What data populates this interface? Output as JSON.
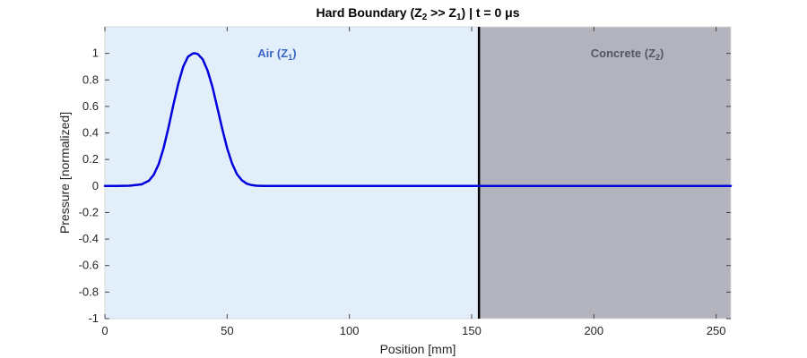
{
  "chart_data": {
    "type": "line",
    "title_parts": {
      "prefix": "Hard  Boundary  (Z",
      "sub1": "2",
      "mid": " >> Z",
      "sub2": "1",
      "suffix": ")  |  t  =  0  μs"
    },
    "xlabel": "Position [mm]",
    "ylabel": "Pressure [normalized]",
    "xlim": [
      0,
      256
    ],
    "ylim": [
      -1,
      1.2
    ],
    "xticks": [
      "0",
      "50",
      "100",
      "150",
      "200",
      "250"
    ],
    "xtick_values": [
      0,
      50,
      100,
      150,
      200,
      250
    ],
    "yticks": [
      "-1",
      "-0.8",
      "-0.6",
      "-0.4",
      "-0.2",
      "0",
      "0.2",
      "0.4",
      "0.6",
      "0.8",
      "1"
    ],
    "ytick_values": [
      -1,
      -0.8,
      -0.6,
      -0.4,
      -0.2,
      0,
      0.2,
      0.4,
      0.6,
      0.8,
      1
    ],
    "boundary_x": 153,
    "regions": [
      {
        "name": "Air",
        "sub": "1",
        "x_range": [
          0,
          153
        ],
        "color": "#e3eefb",
        "label_color": "#3a66c4"
      },
      {
        "name": "Concrete",
        "sub": "2",
        "x_range": [
          153,
          256
        ],
        "color": "#b3b3bd",
        "label_color": "#555566"
      }
    ],
    "series": [
      {
        "color": "#0000dd",
        "x": [
          0,
          5,
          10,
          15,
          18,
          20,
          22,
          24,
          26,
          28,
          30,
          32,
          34,
          36,
          37,
          38,
          40,
          42,
          44,
          46,
          48,
          50,
          52,
          54,
          56,
          58,
          60,
          62,
          65,
          70,
          80,
          100,
          120,
          140,
          153,
          180,
          200,
          230,
          256
        ],
        "y": [
          0,
          0,
          0.002,
          0.012,
          0.04,
          0.085,
          0.165,
          0.285,
          0.44,
          0.61,
          0.77,
          0.9,
          0.975,
          1.0,
          1.0,
          0.995,
          0.955,
          0.87,
          0.745,
          0.59,
          0.43,
          0.285,
          0.17,
          0.09,
          0.043,
          0.018,
          0.007,
          0.002,
          0,
          0,
          0,
          0,
          0,
          0,
          0,
          0,
          0,
          0,
          0
        ]
      }
    ]
  }
}
